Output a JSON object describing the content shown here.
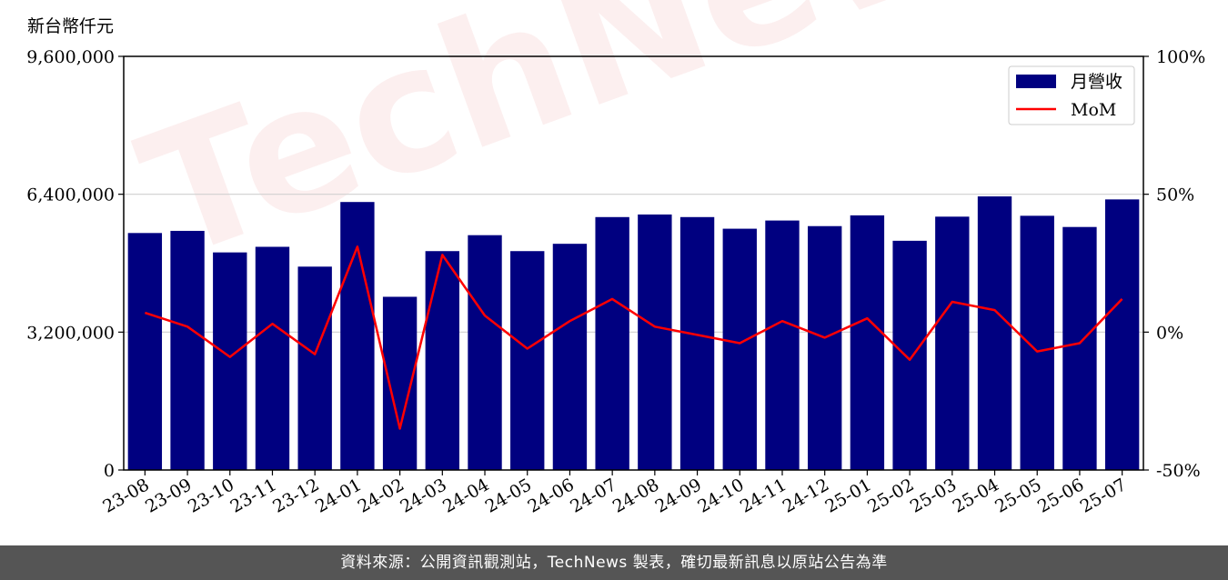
{
  "chart_data": {
    "type": "bar",
    "title": "",
    "ylabel": "新台幣仟元",
    "categories": [
      "23-08",
      "23-09",
      "23-10",
      "23-11",
      "23-12",
      "24-01",
      "24-02",
      "24-03",
      "24-04",
      "24-05",
      "24-06",
      "24-07",
      "24-08",
      "24-09",
      "24-10",
      "24-11",
      "24-12",
      "25-01",
      "25-02",
      "25-03",
      "25-04",
      "25-05",
      "25-06",
      "25-07"
    ],
    "ylim": [
      0,
      9600000
    ],
    "y_ticks": [
      "0",
      "3,200,000",
      "6,400,000",
      "9,600,000"
    ],
    "y2lim": [
      -0.5,
      1.0
    ],
    "y2_ticks": [
      "-50%",
      "0%",
      "50%",
      "100%"
    ],
    "series": [
      {
        "name": "月營收",
        "type": "bar",
        "color": "#000080",
        "values": [
          5500000,
          5550000,
          5050000,
          5180000,
          4720000,
          6220000,
          4020000,
          5080000,
          5450000,
          5080000,
          5250000,
          5870000,
          5930000,
          5870000,
          5600000,
          5790000,
          5660000,
          5910000,
          5320000,
          5880000,
          6350000,
          5900000,
          5640000,
          6280000
        ]
      },
      {
        "name": "MoM",
        "type": "line",
        "axis": "right",
        "color": "#ff0000",
        "values": [
          0.07,
          0.02,
          -0.09,
          0.03,
          -0.08,
          0.31,
          -0.35,
          0.28,
          0.06,
          -0.06,
          0.04,
          0.12,
          0.02,
          -0.01,
          -0.04,
          0.04,
          -0.02,
          0.05,
          -0.1,
          0.11,
          0.08,
          -0.07,
          -0.04,
          0.12
        ]
      }
    ],
    "legend": "top-right",
    "grid": "horizontal"
  },
  "watermark": "TechNews",
  "footer": "資料來源：公開資訊觀測站，TechNews 製表，確切最新訊息以原站公告為準"
}
